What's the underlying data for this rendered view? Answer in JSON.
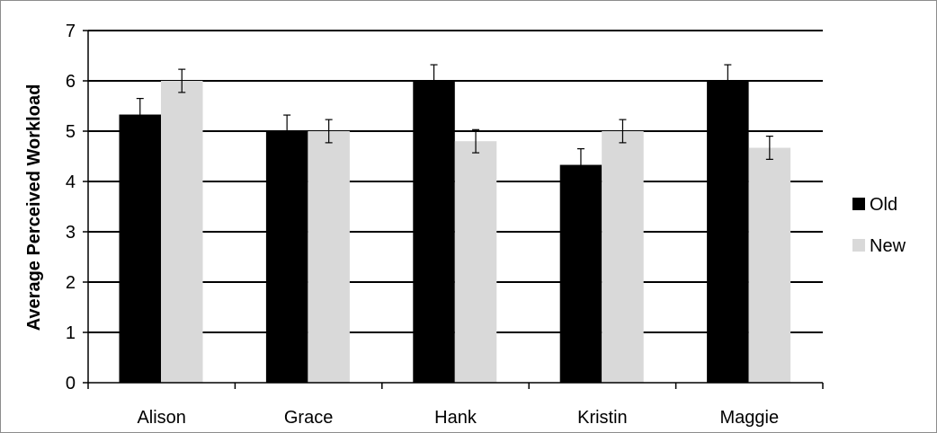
{
  "chart_data": {
    "type": "bar",
    "title": "",
    "xlabel": "",
    "ylabel": "Average Perceived Workload",
    "ylim": [
      0,
      7
    ],
    "yticks": [
      "0",
      "1",
      "2",
      "3",
      "4",
      "5",
      "6",
      "7"
    ],
    "grid": true,
    "legend_position": "right",
    "categories": [
      "Alison",
      "Grace",
      "Hank",
      "Kristin",
      "Maggie"
    ],
    "series": [
      {
        "name": "Old",
        "color": "#000000",
        "values": [
          5.33,
          5.0,
          6.0,
          4.33,
          6.0
        ],
        "error": [
          0.32,
          0.32,
          0.32,
          0.32,
          0.32
        ]
      },
      {
        "name": "New",
        "color": "#d9d9d9",
        "values": [
          6.0,
          5.0,
          4.8,
          5.0,
          4.67
        ],
        "error": [
          0.23,
          0.23,
          0.23,
          0.23,
          0.23
        ]
      }
    ]
  }
}
